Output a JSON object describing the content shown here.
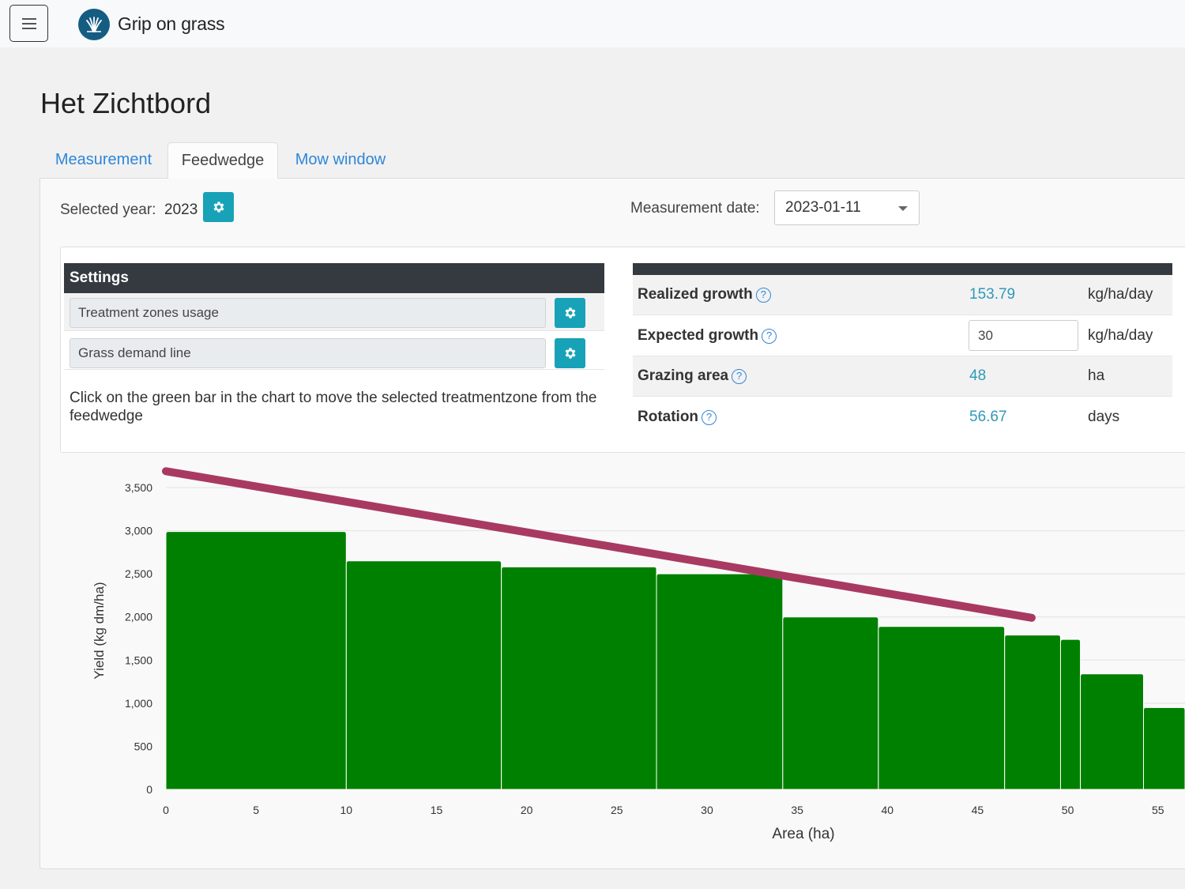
{
  "app": {
    "brand": "Grip on grass"
  },
  "page": {
    "title": "Het Zichtbord"
  },
  "tabs": [
    {
      "label": "Measurement",
      "active": false
    },
    {
      "label": "Feedwedge",
      "active": true
    },
    {
      "label": "Mow window",
      "active": false
    }
  ],
  "controls": {
    "selected_year_label": "Selected year:",
    "selected_year": "2023",
    "measurement_date_label": "Measurement date:",
    "measurement_date": "2023-01-11"
  },
  "settings": {
    "title": "Settings",
    "items": [
      {
        "label": "Treatment zones usage"
      },
      {
        "label": "Grass demand line"
      }
    ],
    "hint": "Click on the green bar in the chart to move the selected treatmentzone from the feedwedge"
  },
  "stats": {
    "help_symbol": "?",
    "rows": [
      {
        "label": "Realized growth",
        "value": "153.79",
        "unit": "kg/ha/day"
      },
      {
        "label": "Expected growth",
        "value": "30",
        "unit": "kg/ha/day"
      },
      {
        "label": "Grazing area",
        "value": "48",
        "unit": "ha"
      },
      {
        "label": "Rotation",
        "value": "56.67",
        "unit": "days"
      }
    ]
  },
  "colors": {
    "accent": "#17a2b8",
    "bar": "#008000",
    "demand_line": "#a83a62",
    "link": "#2f86d8"
  },
  "chart_data": {
    "type": "bar",
    "xlabel": "Area (ha)",
    "ylabel": "Yield (kg dm/ha)",
    "xlim": [
      0,
      56.5
    ],
    "ylim": [
      0,
      3500
    ],
    "xticks": [
      0,
      5,
      10,
      15,
      20,
      25,
      30,
      35,
      40,
      45,
      50,
      55
    ],
    "yticks": [
      0,
      500,
      1000,
      1500,
      2000,
      2500,
      3000,
      3500
    ],
    "grid": true,
    "bars": [
      {
        "x0": 0,
        "x1": 10,
        "value": 2990
      },
      {
        "x0": 10,
        "x1": 18.6,
        "value": 2650
      },
      {
        "x0": 18.6,
        "x1": 27.2,
        "value": 2580
      },
      {
        "x0": 27.2,
        "x1": 34.2,
        "value": 2500
      },
      {
        "x0": 34.2,
        "x1": 39.5,
        "value": 2000
      },
      {
        "x0": 39.5,
        "x1": 46.5,
        "value": 1890
      },
      {
        "x0": 46.5,
        "x1": 49.6,
        "value": 1790
      },
      {
        "x0": 49.6,
        "x1": 50.7,
        "value": 1740
      },
      {
        "x0": 50.7,
        "x1": 54.2,
        "value": 1340
      },
      {
        "x0": 54.2,
        "x1": 56.5,
        "value": 950
      }
    ],
    "demand_line": {
      "x": [
        0,
        48
      ],
      "y": [
        3690,
        1990
      ]
    }
  }
}
